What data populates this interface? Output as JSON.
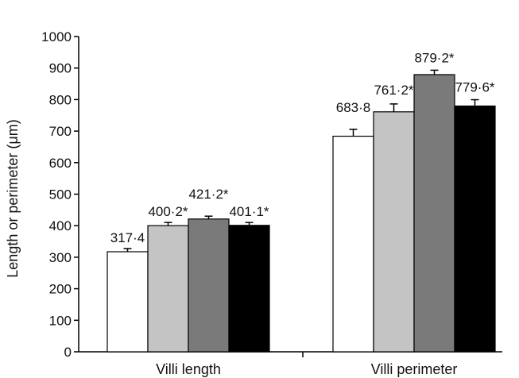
{
  "chart_data": {
    "type": "bar",
    "title": "",
    "xlabel": "",
    "ylabel": "Length or perimeter (μm)",
    "ylim": [
      0,
      1000
    ],
    "yticks": [
      0,
      100,
      200,
      300,
      400,
      500,
      600,
      700,
      800,
      900,
      1000
    ],
    "categories": [
      "Villi length",
      "Villi perimeter"
    ],
    "grid": false,
    "legend": "none",
    "series": [
      {
        "color": "#ffffff",
        "values": [
          317.4,
          683.8
        ],
        "errors": [
          10,
          22
        ],
        "labels": [
          "317·4",
          "683·8"
        ]
      },
      {
        "color": "#c4c4c4",
        "values": [
          400.2,
          761.2
        ],
        "errors": [
          10,
          25
        ],
        "labels": [
          "400·2*",
          "761·2*"
        ]
      },
      {
        "color": "#7a7a7a",
        "values": [
          421.2,
          879.2
        ],
        "errors": [
          9,
          14
        ],
        "labels": [
          "421·2*",
          "879·2*"
        ]
      },
      {
        "color": "#000000",
        "values": [
          401.1,
          779.6
        ],
        "errors": [
          9,
          20
        ],
        "labels": [
          "401·1*",
          "779·6*"
        ]
      }
    ]
  }
}
